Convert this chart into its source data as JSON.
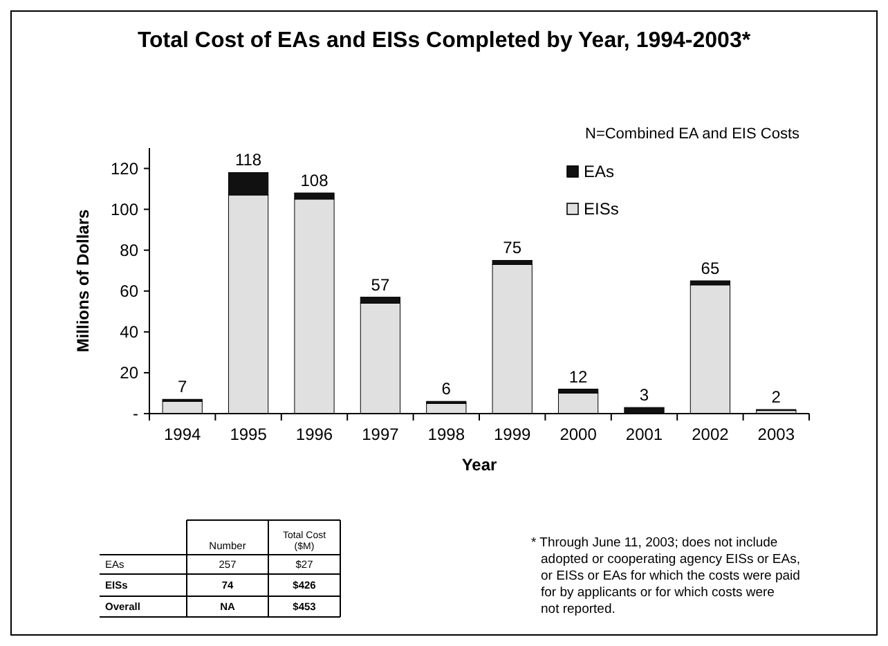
{
  "chart_data": {
    "type": "bar",
    "stacked": true,
    "title": "Total Cost of EAs and EISs Completed by Year, 1994-2003*",
    "xlabel": "Year",
    "ylabel": "Millions of Dollars",
    "legend_title": "N=Combined EA and EIS Costs",
    "legend": "top right",
    "categories": [
      "1994",
      "1995",
      "1996",
      "1997",
      "1998",
      "1999",
      "2000",
      "2001",
      "2002",
      "2003"
    ],
    "series": [
      {
        "name": "EISs",
        "color": "#e0e0e0",
        "values": [
          6,
          107,
          105,
          54,
          5,
          73,
          10,
          null,
          63,
          1.5
        ]
      },
      {
        "name": "EAs",
        "color": "#111111",
        "values": [
          1,
          11,
          3,
          3,
          1,
          2,
          2,
          3,
          2,
          0.5
        ]
      }
    ],
    "totals": [
      "7",
      "118",
      "108",
      "57",
      "6",
      "75",
      "12",
      "3",
      "65",
      "2"
    ],
    "ylim": [
      0,
      130
    ],
    "yticks": [
      {
        "value": 0,
        "label": "-"
      },
      20,
      40,
      60,
      80,
      100,
      120
    ],
    "grid": false,
    "annotations": [
      "Number",
      "Total Cost ($M)",
      "EAs",
      "257",
      "$27",
      "EISs",
      "74",
      "$426",
      "Overall",
      "NA",
      "$453",
      "* Through June 11, 2003; does not include adopted or cooperating agency EISs or EAs, or EISs or EAs for which the costs were paid for by applicants or for which costs were not reported."
    ]
  }
}
